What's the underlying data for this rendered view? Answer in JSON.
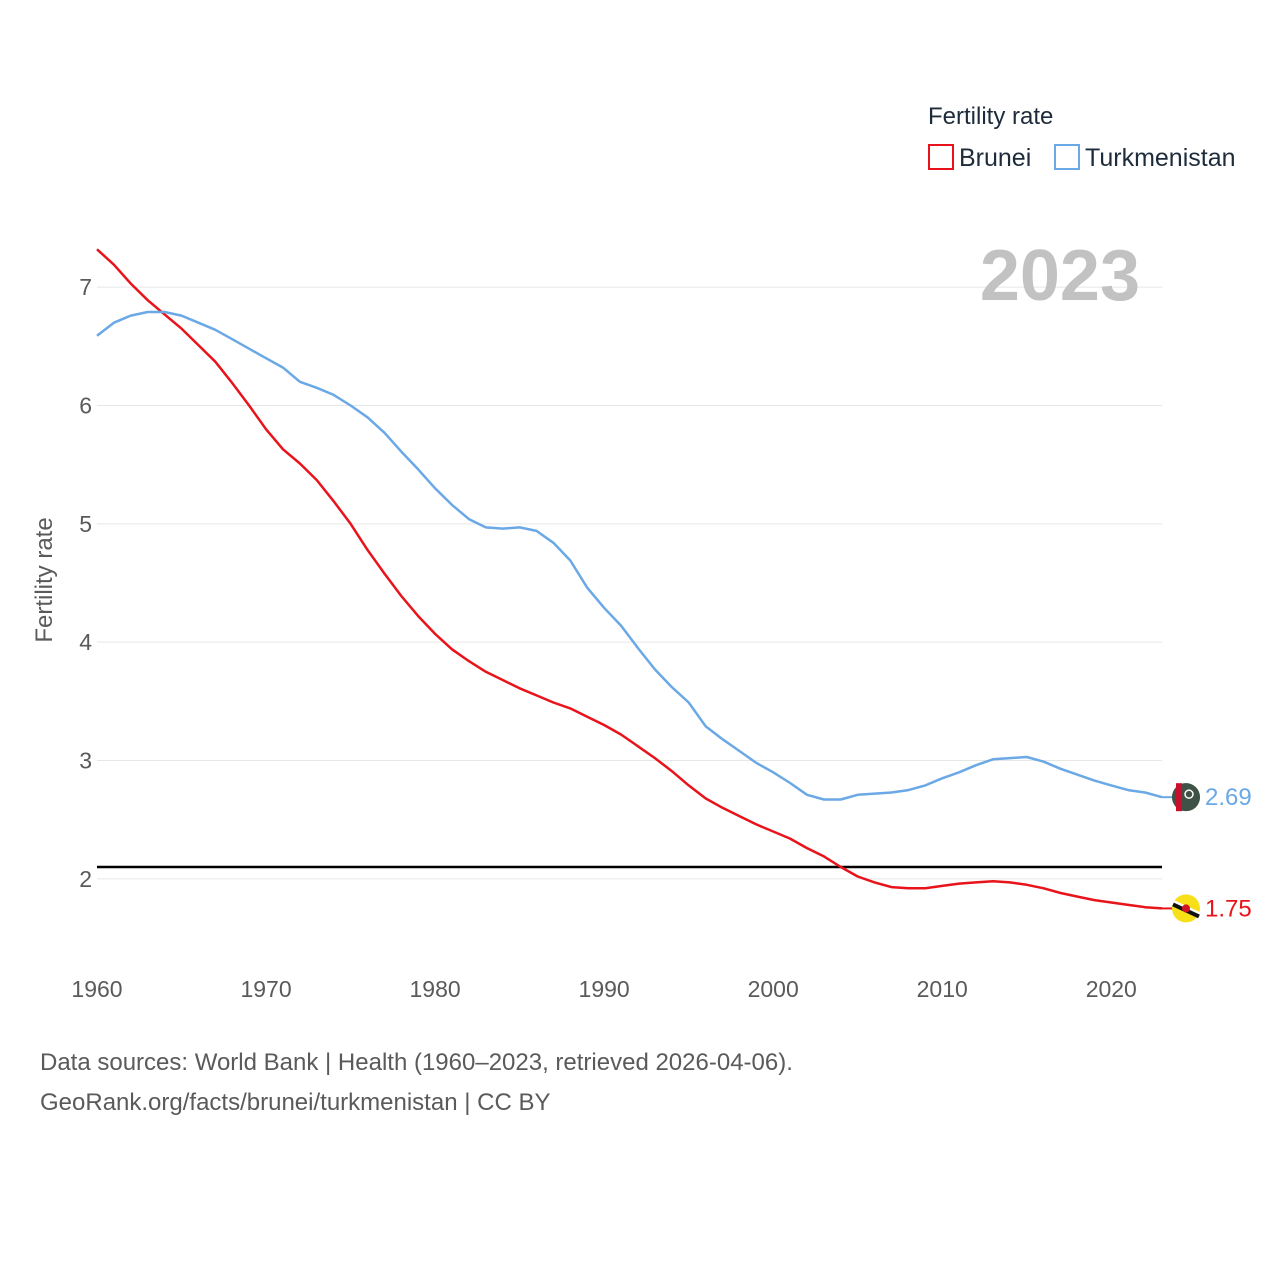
{
  "chart_data": {
    "type": "line",
    "legend_title": "Fertility rate",
    "year_label": "2023",
    "ylabel": "Fertility rate",
    "xlim": [
      1960,
      2023
    ],
    "ylim": [
      1.5,
      7.5
    ],
    "x_ticks": [
      1960,
      1970,
      1980,
      1990,
      2000,
      2010,
      2020
    ],
    "y_ticks": [
      2,
      3,
      4,
      5,
      6,
      7
    ],
    "reference_line": 2.1,
    "x": [
      1960,
      1961,
      1962,
      1963,
      1964,
      1965,
      1966,
      1967,
      1968,
      1969,
      1970,
      1971,
      1972,
      1973,
      1974,
      1975,
      1976,
      1977,
      1978,
      1979,
      1980,
      1981,
      1982,
      1983,
      1984,
      1985,
      1986,
      1987,
      1988,
      1989,
      1990,
      1991,
      1992,
      1993,
      1994,
      1995,
      1996,
      1997,
      1998,
      1999,
      2000,
      2001,
      2002,
      2003,
      2004,
      2005,
      2006,
      2007,
      2008,
      2009,
      2010,
      2011,
      2012,
      2013,
      2014,
      2015,
      2016,
      2017,
      2018,
      2019,
      2020,
      2021,
      2022,
      2023
    ],
    "series": [
      {
        "name": "Brunei",
        "color": "#e8131b",
        "end_label": "1.75",
        "flag_icon": "brunei-flag-icon",
        "values": [
          7.32,
          7.19,
          7.03,
          6.89,
          6.77,
          6.65,
          6.51,
          6.37,
          6.19,
          6.0,
          5.8,
          5.63,
          5.51,
          5.37,
          5.19,
          5.0,
          4.78,
          4.58,
          4.39,
          4.22,
          4.07,
          3.94,
          3.84,
          3.75,
          3.68,
          3.61,
          3.55,
          3.49,
          3.44,
          3.37,
          3.3,
          3.22,
          3.12,
          3.02,
          2.91,
          2.79,
          2.68,
          2.6,
          2.53,
          2.46,
          2.4,
          2.34,
          2.26,
          2.19,
          2.1,
          2.02,
          1.97,
          1.93,
          1.92,
          1.92,
          1.94,
          1.96,
          1.97,
          1.98,
          1.97,
          1.95,
          1.92,
          1.88,
          1.85,
          1.82,
          1.8,
          1.78,
          1.76,
          1.75
        ]
      },
      {
        "name": "Turkmenistan",
        "color": "#6aa8e6",
        "end_label": "2.69",
        "flag_icon": "turkmenistan-flag-icon",
        "values": [
          6.59,
          6.7,
          6.76,
          6.79,
          6.79,
          6.76,
          6.7,
          6.64,
          6.56,
          6.48,
          6.4,
          6.32,
          6.2,
          6.15,
          6.09,
          6.0,
          5.9,
          5.77,
          5.61,
          5.46,
          5.3,
          5.16,
          5.04,
          4.97,
          4.96,
          4.97,
          4.94,
          4.84,
          4.69,
          4.46,
          4.29,
          4.14,
          3.95,
          3.77,
          3.62,
          3.49,
          3.29,
          3.18,
          3.08,
          2.98,
          2.9,
          2.81,
          2.71,
          2.67,
          2.67,
          2.71,
          2.72,
          2.73,
          2.75,
          2.79,
          2.85,
          2.9,
          2.96,
          3.01,
          3.02,
          3.03,
          2.99,
          2.93,
          2.88,
          2.83,
          2.79,
          2.75,
          2.73,
          2.69
        ]
      }
    ]
  },
  "footer": {
    "line1": "Data sources: World Bank | Health (1960–2023, retrieved 2026-04-06).",
    "line2": "GeoRank.org/facts/brunei/turkmenistan | CC BY"
  }
}
